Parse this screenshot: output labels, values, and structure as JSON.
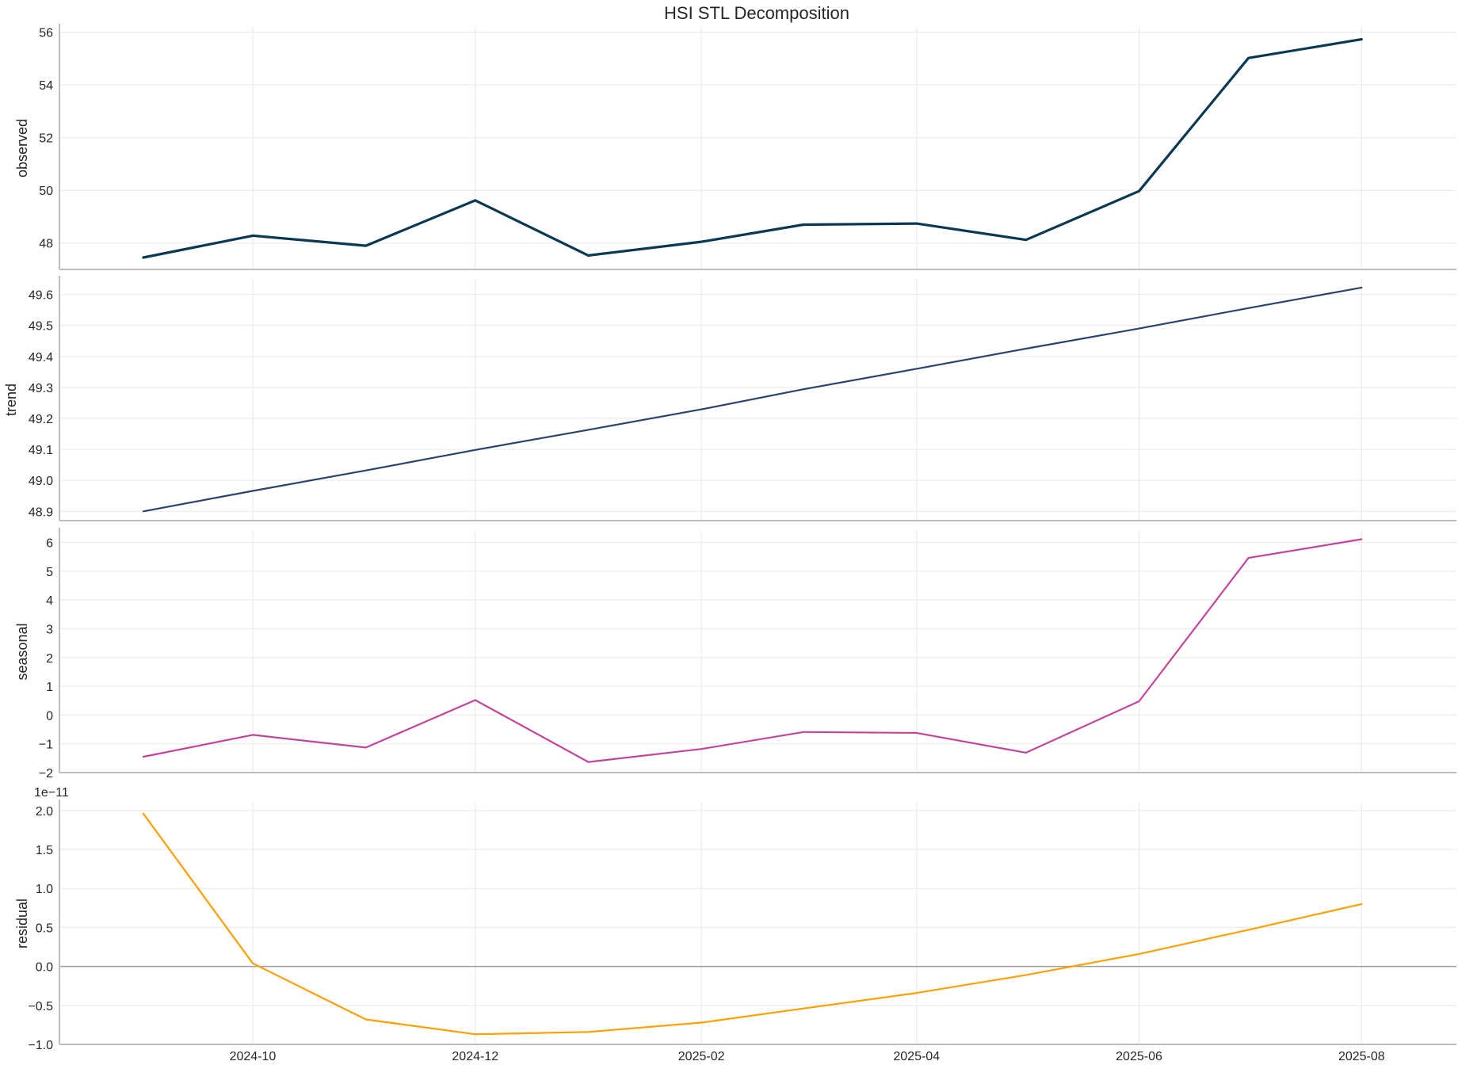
{
  "chart_data": {
    "type": "line",
    "title": "HSI STL Decomposition",
    "x": [
      "2024-09-01",
      "2024-10-01",
      "2024-11-01",
      "2024-12-01",
      "2025-01-01",
      "2025-02-01",
      "2025-03-01",
      "2025-04-01",
      "2025-05-01",
      "2025-06-01",
      "2025-07-01",
      "2025-08-01"
    ],
    "x_tick_labels": [
      "2024-10",
      "2024-12",
      "2025-02",
      "2025-04",
      "2025-06",
      "2025-08"
    ],
    "x_tick_dates": [
      "2024-10-01",
      "2024-12-01",
      "2025-02-01",
      "2025-04-01",
      "2025-06-01",
      "2025-08-01"
    ],
    "x_range": [
      "2024-08-09",
      "2025-08-27"
    ],
    "grid": true,
    "panels": [
      {
        "ylabel": "observed",
        "color": "#0b3954",
        "ylim": [
          47,
          56.2
        ],
        "yticks": [
          48,
          50,
          52,
          54,
          56
        ],
        "ytick_labels": [
          "48",
          "50",
          "52",
          "54",
          "56"
        ],
        "values": [
          47.45,
          48.28,
          47.9,
          49.62,
          47.53,
          48.05,
          48.7,
          48.74,
          48.12,
          49.97,
          55.02,
          55.73
        ]
      },
      {
        "ylabel": "trend",
        "color": "#2b446e",
        "ylim": [
          48.87,
          49.65
        ],
        "yticks": [
          48.9,
          49.0,
          49.1,
          49.2,
          49.3,
          49.4,
          49.5,
          49.6
        ],
        "ytick_labels": [
          "48.9",
          "49.0",
          "49.1",
          "49.2",
          "49.3",
          "49.4",
          "49.5",
          "49.6"
        ],
        "values": [
          48.9,
          48.966,
          49.032,
          49.098,
          49.163,
          49.229,
          49.294,
          49.36,
          49.425,
          49.49,
          49.556,
          49.622
        ]
      },
      {
        "ylabel": "seasonal",
        "color": "#c2459b",
        "ylim": [
          -2,
          6.4
        ],
        "yticks": [
          -2,
          -1,
          0,
          1,
          2,
          3,
          4,
          5,
          6
        ],
        "ytick_labels": [
          "−2",
          "−1",
          "0",
          "1",
          "2",
          "3",
          "4",
          "5",
          "6"
        ],
        "values": [
          -1.45,
          -0.69,
          -1.13,
          0.52,
          -1.63,
          -1.18,
          -0.59,
          -0.62,
          -1.31,
          0.48,
          5.46,
          6.11
        ]
      },
      {
        "ylabel": "residual",
        "color": "#ff9f00",
        "offset_label": "1e−11",
        "ylim": [
          -1.0,
          2.1
        ],
        "yticks": [
          -1.0,
          -0.5,
          0.0,
          0.5,
          1.0,
          1.5,
          2.0
        ],
        "ytick_labels": [
          "−1.0",
          "−0.5",
          "0.0",
          "0.5",
          "1.0",
          "1.5",
          "2.0"
        ],
        "zero_line": true,
        "values": [
          1.96,
          0.04,
          -0.68,
          -0.87,
          -0.84,
          -0.72,
          -0.54,
          -0.34,
          -0.11,
          0.16,
          0.47,
          0.8
        ]
      }
    ]
  }
}
